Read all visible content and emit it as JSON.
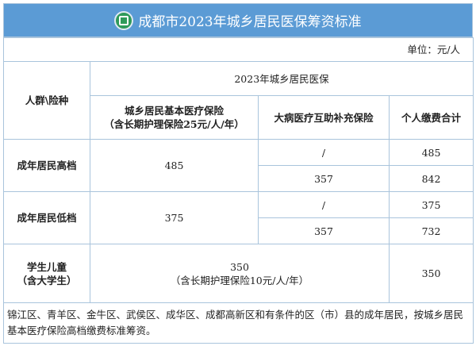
{
  "title": "成都市2023年城乡居民医保筹资标准",
  "logo_icon": "medical-insurance-logo",
  "colors": {
    "header_bg": "#5b9bd5",
    "border": "#a9c4dc"
  },
  "unit": "单位：元/人",
  "headers": {
    "group": "人群\\险种",
    "main": "2023年城乡居民医保",
    "basic_line1": "城乡居民基本医疗保险",
    "basic_line2": "（含长期护理保险25元/人/年）",
    "critical": "大病医疗互助补充保险",
    "total": "个人缴费合计"
  },
  "rows": [
    {
      "group": "成年居民高档",
      "basic": "485",
      "sub": [
        {
          "critical": "/",
          "total": "485"
        },
        {
          "critical": "357",
          "total": "842"
        }
      ]
    },
    {
      "group": "成年居民低档",
      "basic": "375",
      "sub": [
        {
          "critical": "/",
          "total": "375"
        },
        {
          "critical": "357",
          "total": "732"
        }
      ]
    }
  ],
  "student": {
    "group_line1": "学生儿童",
    "group_line2": "（含大学生）",
    "basic_line1": "350",
    "basic_line2": "（含长期护理保险10元/人/年）",
    "total": "350"
  },
  "note": "锦江区、青羊区、金牛区、武侯区、成华区、成都高新区和有条件的区（市）县的成年居民，按城乡居民基本医疗保险高档缴费标准筹资。"
}
